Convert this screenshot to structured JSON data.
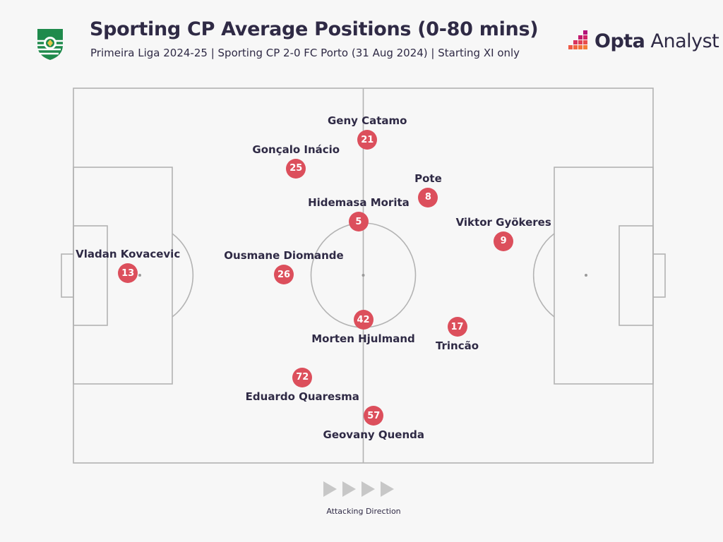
{
  "header": {
    "title": "Sporting CP Average Positions (0-80 mins)",
    "subtitle": "Primeira Liga 2024-25 | Sporting CP 2-0 FC Porto (31 Aug 2024) | Starting XI only",
    "brand_name_bold": "Opta",
    "brand_name_light": " Analyst",
    "crest_icon": "sporting-crest-icon",
    "crest_lettering": "SPORTING PORTUGAL"
  },
  "colors": {
    "background": "#f7f7f7",
    "pitch_lines": "#b3b3b3",
    "player_dot": "#dc4f5c",
    "text": "#2f2a45",
    "arrow": "#c7c7c7",
    "crest_green": "#1f8a4c"
  },
  "players": [
    {
      "number": "21",
      "name": "Geny Catamo",
      "x": 50.7,
      "y": 13.8,
      "label": "above"
    },
    {
      "number": "25",
      "name": "Gonçalo Inácio",
      "x": 38.4,
      "y": 21.4,
      "label": "above"
    },
    {
      "number": "8",
      "name": "Pote",
      "x": 61.2,
      "y": 29.1,
      "label": "above"
    },
    {
      "number": "5",
      "name": "Hidemasa Morita",
      "x": 49.2,
      "y": 35.6,
      "label": "above"
    },
    {
      "number": "9",
      "name": "Viktor Gyökeres",
      "x": 74.2,
      "y": 40.8,
      "label": "above"
    },
    {
      "number": "13",
      "name": "Vladan Kovacevic",
      "x": 9.4,
      "y": 49.4,
      "label": "above"
    },
    {
      "number": "26",
      "name": "Ousmane Diomande",
      "x": 36.3,
      "y": 49.8,
      "label": "above"
    },
    {
      "number": "42",
      "name": "Morten Hjulmand",
      "x": 50.0,
      "y": 61.8,
      "label": "below"
    },
    {
      "number": "17",
      "name": "Trincão",
      "x": 66.2,
      "y": 63.7,
      "label": "below"
    },
    {
      "number": "72",
      "name": "Eduardo Quaresma",
      "x": 39.5,
      "y": 77.2,
      "label": "below"
    },
    {
      "number": "57",
      "name": "Geovany Quenda",
      "x": 51.8,
      "y": 87.4,
      "label": "below"
    }
  ],
  "footer": {
    "direction_label": "Attacking Direction",
    "arrow_count": 4
  }
}
